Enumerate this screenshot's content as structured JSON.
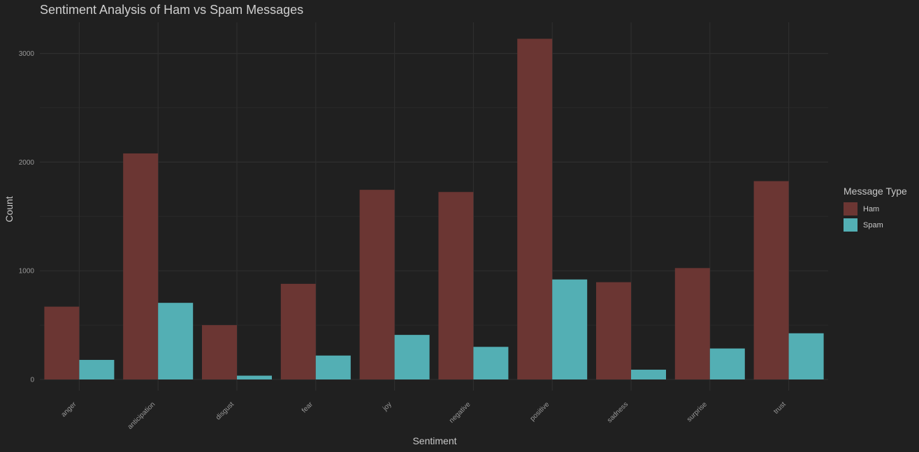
{
  "chart_data": {
    "type": "bar",
    "title": "Sentiment Analysis of Ham vs Spam Messages",
    "xlabel": "Sentiment",
    "ylabel": "Count",
    "categories": [
      "anger",
      "anticipation",
      "disgust",
      "fear",
      "joy",
      "negative",
      "positive",
      "sadness",
      "surprise",
      "trust"
    ],
    "series": [
      {
        "name": "Ham",
        "color": "#6b3633",
        "values": [
          670,
          2080,
          500,
          880,
          1745,
          1725,
          3135,
          895,
          1025,
          1825
        ]
      },
      {
        "name": "Spam",
        "color": "#53afb4",
        "values": [
          180,
          705,
          35,
          220,
          410,
          300,
          920,
          90,
          285,
          425
        ]
      }
    ],
    "ylim": [
      0,
      3300
    ],
    "yticks": [
      0,
      1000,
      2000,
      3000
    ],
    "grid": true,
    "legend": {
      "title": "Message Type",
      "position": "right"
    }
  }
}
